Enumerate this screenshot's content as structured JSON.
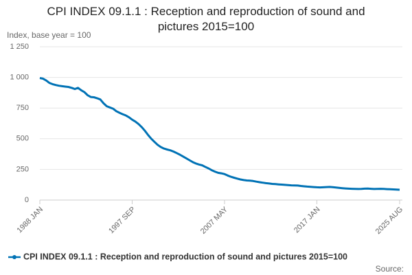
{
  "chart_data": {
    "type": "line",
    "title": "CPI INDEX 09.1.1 : Reception and reproduction of sound and pictures 2015=100",
    "y_label": "Index, base year = 100",
    "source": "Source:",
    "categories": [
      "1988 JAN",
      null,
      null,
      null,
      null,
      null,
      null,
      null,
      null,
      null,
      null,
      null,
      null,
      null,
      null,
      null,
      null,
      null,
      null,
      null,
      null,
      null,
      null,
      null,
      null,
      null,
      null,
      null,
      null,
      "1997 SEP",
      null,
      null,
      null,
      null,
      null,
      null,
      null,
      null,
      null,
      null,
      null,
      null,
      null,
      null,
      null,
      null,
      null,
      null,
      null,
      null,
      null,
      null,
      null,
      null,
      null,
      null,
      null,
      null,
      "2007 MAY",
      null,
      null,
      null,
      null,
      null,
      null,
      null,
      null,
      null,
      null,
      null,
      null,
      null,
      null,
      null,
      null,
      null,
      null,
      null,
      null,
      null,
      null,
      null,
      null,
      null,
      null,
      null,
      null,
      "2017 JAN",
      null,
      null,
      null,
      null,
      null,
      null,
      null,
      null,
      null,
      null,
      null,
      null,
      null,
      null,
      null,
      null,
      null,
      null,
      null,
      null,
      null,
      null,
      null,
      null,
      null,
      "2025 AUG"
    ],
    "series": [
      {
        "name": "CPI INDEX 09.1.1 : Reception and reproduction of sound and pictures 2015=100",
        "color": "#0072b5",
        "values": [
          995,
          990,
          975,
          955,
          945,
          938,
          932,
          928,
          925,
          922,
          915,
          905,
          915,
          895,
          880,
          855,
          840,
          838,
          830,
          820,
          790,
          765,
          755,
          745,
          725,
          712,
          700,
          690,
          675,
          655,
          640,
          620,
          595,
          565,
          530,
          500,
          475,
          450,
          432,
          420,
          412,
          405,
          395,
          383,
          370,
          355,
          340,
          325,
          310,
          298,
          290,
          283,
          270,
          258,
          243,
          232,
          222,
          218,
          212,
          200,
          190,
          182,
          175,
          168,
          163,
          160,
          158,
          155,
          150,
          146,
          142,
          138,
          135,
          132,
          130,
          128,
          126,
          124,
          122,
          120,
          119,
          118,
          115,
          112,
          110,
          108,
          106,
          104,
          103,
          104,
          106,
          107,
          105,
          102,
          99,
          97,
          95,
          93,
          92,
          91,
          90,
          91,
          93,
          94,
          92,
          90,
          91,
          92,
          91,
          89,
          88,
          87,
          86,
          84
        ]
      }
    ],
    "ylim": [
      0,
      1250
    ],
    "yticks": [
      0,
      250,
      500,
      750,
      {
        "value": 1000,
        "label": "1 000"
      },
      {
        "value": 1250,
        "label": "1 250"
      }
    ],
    "grid": true
  }
}
